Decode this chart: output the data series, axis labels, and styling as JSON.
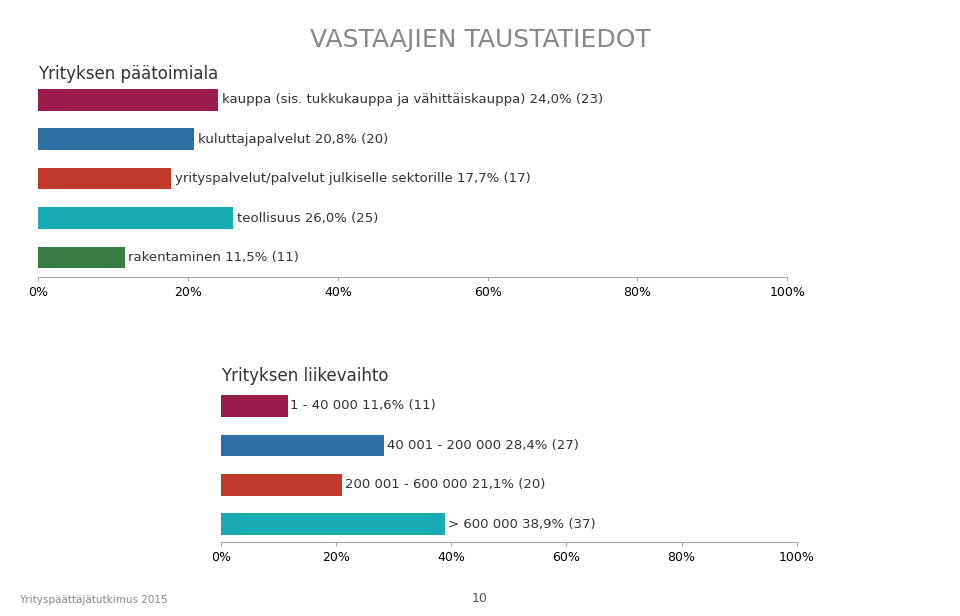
{
  "title": "VASTAAJIEN TAUSTATIEDOT",
  "title_color": "#888888",
  "bg_color": "#ffffff",
  "chart1_label": "Yrityksen päätoimiala",
  "chart1_bars": [
    {
      "label": "kauppa (sis. tukkukauppa ja vähittäiskauppa) 24,0% (23)",
      "value": 24.0,
      "color": "#9B1B4B"
    },
    {
      "label": "kuluttajapalvelut 20,8% (20)",
      "value": 20.8,
      "color": "#2E6FA3"
    },
    {
      "label": "yrityspalvelut/palvelut julkiselle sektorille 17,7% (17)",
      "value": 17.7,
      "color": "#C0392B"
    },
    {
      "label": "teollisuus 26,0% (25)",
      "value": 26.0,
      "color": "#1AACB5"
    },
    {
      "label": "rakentaminen 11,5% (11)",
      "value": 11.5,
      "color": "#3A7D44"
    }
  ],
  "chart2_label": "Yrityksen liikevaihto",
  "chart2_bars": [
    {
      "label": "1 - 40 000 11,6% (11)",
      "value": 11.6,
      "color": "#9B1B4B"
    },
    {
      "label": "40 001 - 200 000 28,4% (27)",
      "value": 28.4,
      "color": "#2E6FA3"
    },
    {
      "label": "200 001 - 600 000 21,1% (20)",
      "value": 21.1,
      "color": "#C0392B"
    },
    {
      "label": "> 600 000 38,9% (37)",
      "value": 38.9,
      "color": "#1AACB5"
    }
  ],
  "footer_left": "Yrityspäättäjätutkimus 2015",
  "footer_center": "10",
  "label_fontsize": 9.5,
  "section_label_fontsize": 12,
  "bar_height": 0.55,
  "xlim": [
    0,
    100
  ]
}
